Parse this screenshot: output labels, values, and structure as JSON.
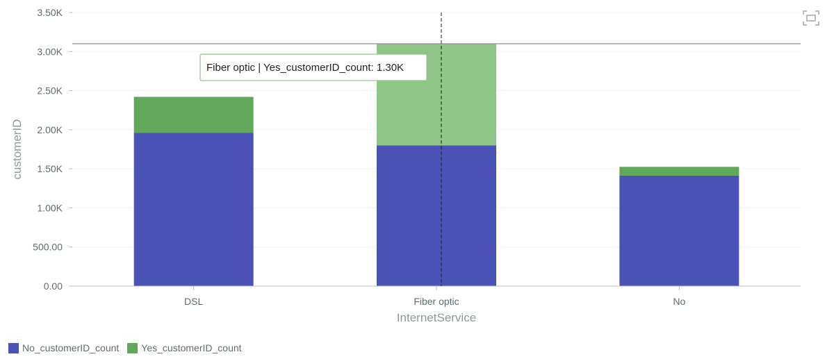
{
  "chart_data": {
    "type": "bar",
    "stacked": true,
    "categories": [
      "DSL",
      "Fiber optic",
      "No"
    ],
    "series": [
      {
        "name": "No_customerID_count",
        "values": [
          1962,
          1799,
          1413
        ],
        "color": "#4a53b5"
      },
      {
        "name": "Yes_customerID_count",
        "values": [
          459,
          1297,
          113
        ],
        "color": "#62a85b"
      }
    ],
    "xlabel": "InternetService",
    "ylabel": "customerID",
    "ylim": [
      0,
      3500
    ],
    "yticks": [
      0,
      500,
      1000,
      1500,
      2000,
      2500,
      3000,
      3500
    ],
    "ytick_labels": [
      "0.00",
      "500.00",
      "1.00K",
      "1.50K",
      "2.00K",
      "2.50K",
      "3.00K",
      "3.50K"
    ],
    "reference_line": 3100,
    "grid": true,
    "legend_position": "bottom-left",
    "highlighted_category": "Fiber optic",
    "highlighted_series": "Yes_customerID_count",
    "highlight_color": "#8fc688",
    "tooltip": "Fiber optic | Yes_customerID_count: 1.30K"
  },
  "toolbar": {
    "expand_icon": "expand-icon"
  }
}
